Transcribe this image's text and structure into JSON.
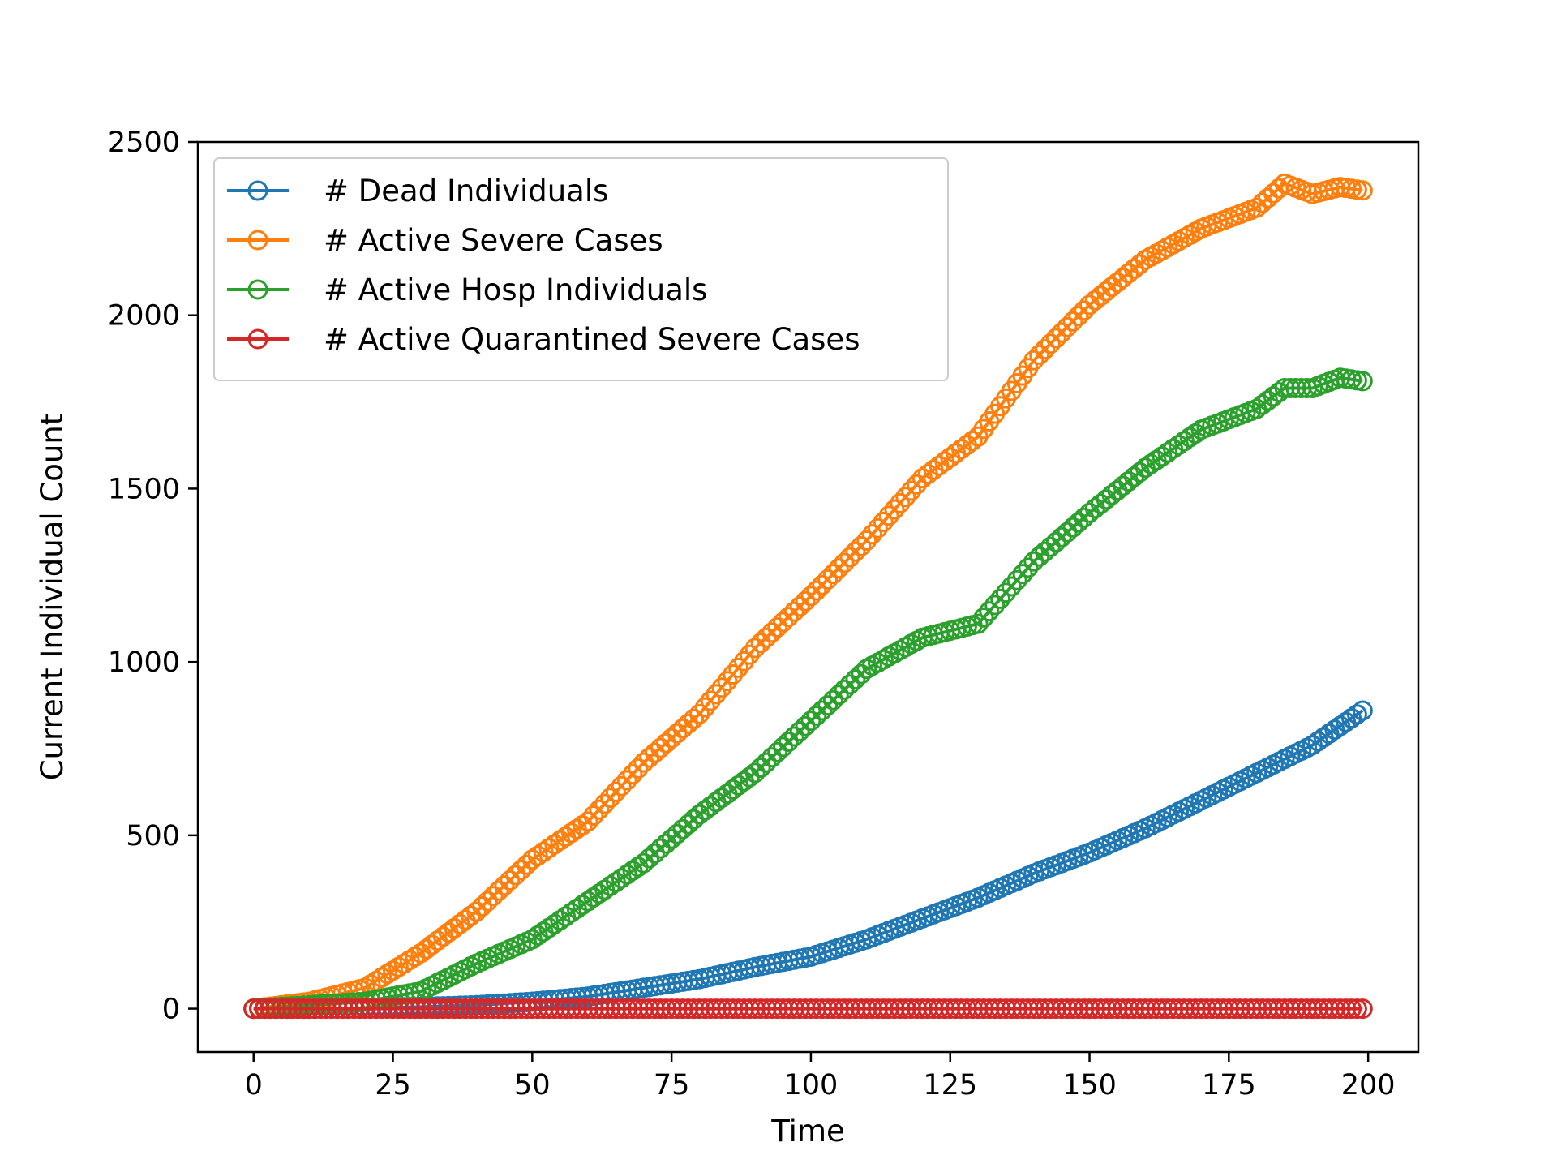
{
  "chart_data": {
    "type": "line",
    "xlabel": "Time",
    "ylabel": "Current Individual Count",
    "xlim": [
      -10,
      209
    ],
    "ylim": [
      -125,
      2500
    ],
    "xticks": [
      0,
      25,
      50,
      75,
      100,
      125,
      150,
      175,
      200
    ],
    "yticks": [
      0,
      500,
      1000,
      1500,
      2000,
      2500
    ],
    "legend_position": "top-left",
    "marker": "open-circle",
    "series": [
      {
        "name": "# Dead Individuals",
        "color": "#1f77b4",
        "x": [
          0,
          10,
          20,
          30,
          40,
          50,
          60,
          70,
          80,
          90,
          100,
          110,
          120,
          130,
          140,
          150,
          160,
          170,
          180,
          190,
          199
        ],
        "values": [
          0,
          0,
          2,
          5,
          10,
          20,
          35,
          60,
          85,
          120,
          150,
          200,
          260,
          320,
          390,
          450,
          520,
          600,
          680,
          760,
          860
        ]
      },
      {
        "name": "# Active Severe Cases",
        "color": "#ff7f0e",
        "x": [
          0,
          10,
          20,
          30,
          40,
          50,
          60,
          70,
          80,
          90,
          100,
          110,
          120,
          130,
          140,
          150,
          160,
          170,
          180,
          185,
          190,
          195,
          199
        ],
        "values": [
          0,
          20,
          60,
          160,
          280,
          430,
          540,
          710,
          850,
          1040,
          1190,
          1350,
          1530,
          1650,
          1870,
          2030,
          2160,
          2250,
          2310,
          2380,
          2350,
          2370,
          2360
        ]
      },
      {
        "name": "# Active Hosp Individuals",
        "color": "#2ca02c",
        "x": [
          0,
          10,
          20,
          30,
          40,
          50,
          60,
          70,
          80,
          90,
          100,
          110,
          120,
          130,
          140,
          150,
          160,
          170,
          180,
          185,
          190,
          195,
          199
        ],
        "values": [
          0,
          10,
          20,
          50,
          130,
          200,
          310,
          420,
          560,
          680,
          830,
          980,
          1070,
          1110,
          1290,
          1430,
          1560,
          1670,
          1730,
          1790,
          1790,
          1820,
          1810
        ]
      },
      {
        "name": "# Active Quarantined Severe Cases",
        "color": "#d62728",
        "x": [
          0,
          25,
          50,
          75,
          100,
          125,
          150,
          175,
          199
        ],
        "values": [
          0,
          0,
          0,
          0,
          0,
          0,
          0,
          0,
          0
        ]
      }
    ]
  }
}
